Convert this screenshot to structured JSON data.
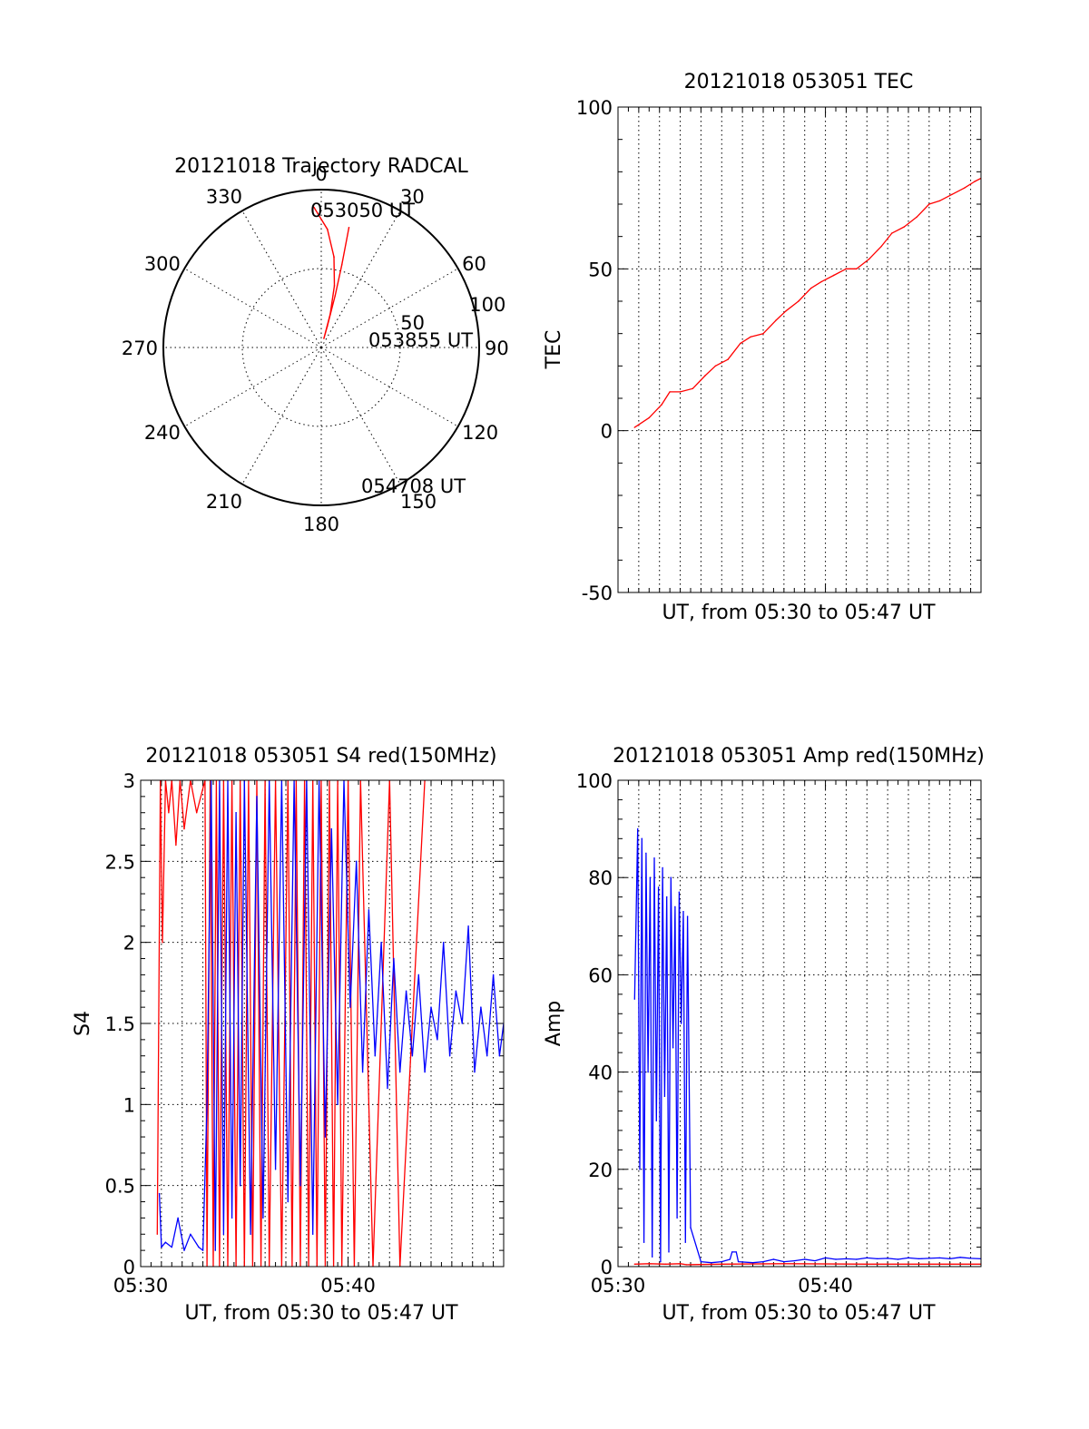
{
  "colors": {
    "red": "#ff0000",
    "blue": "#0000ff",
    "axis": "#000000"
  },
  "chart_data": [
    {
      "type": "polar",
      "title": "20121018 Trajectory RADCAL",
      "angle_labels": [
        "0",
        "30",
        "60",
        "90",
        "120",
        "150",
        "180",
        "210",
        "240",
        "270",
        "300",
        "330"
      ],
      "radius_labels": [
        "50",
        "100"
      ],
      "rlim": [
        0,
        100
      ],
      "grid": true,
      "series": [
        {
          "color": "red",
          "azimuth": [
            -3,
            3,
            8,
            12,
            15,
            16,
            16,
            15,
            14,
            13
          ],
          "radius": [
            89,
            75,
            58,
            40,
            22,
            6,
            14,
            34,
            54,
            78
          ]
        }
      ],
      "annotations": [
        "053050 UT",
        "053855 UT",
        "054708 UT"
      ]
    },
    {
      "type": "line",
      "title": "20121018 053051 TEC",
      "xlabel": "UT, from 05:30 to 05:47 UT",
      "ylabel": "TEC",
      "xlim": [
        0,
        17.5
      ],
      "ylim": [
        -50,
        100
      ],
      "yticks": [
        "-50",
        "0",
        "50",
        "100"
      ],
      "grid": true,
      "series": [
        {
          "color": "red",
          "x": [
            0.8,
            1.5,
            2.1,
            2.5,
            3.0,
            3.6,
            4.2,
            4.7,
            5.3,
            5.9,
            6.4,
            7.0,
            7.6,
            8.1,
            8.7,
            9.3,
            9.8,
            10.4,
            11.0,
            11.5,
            12.1,
            12.7,
            13.2,
            13.8,
            14.4,
            15.0,
            15.5,
            16.1,
            16.7,
            17.2,
            17.5
          ],
          "values": [
            1,
            4,
            8,
            12,
            12,
            13,
            17,
            20,
            22,
            27,
            29,
            30,
            34,
            37,
            40,
            44,
            46,
            48,
            50,
            50,
            53,
            57,
            61,
            63,
            66,
            70,
            71,
            73,
            75,
            77,
            78
          ]
        }
      ]
    },
    {
      "type": "line",
      "title": "20121018 053051 S4 red(150MHz)",
      "xlabel": "UT, from 05:30 to 05:47 UT",
      "ylabel": "S4",
      "xlim": [
        0,
        17.5
      ],
      "ylim": [
        0,
        3
      ],
      "xticks": [
        "05:30",
        "05:40"
      ],
      "yticks": [
        "0",
        "0.5",
        "1",
        "1.5",
        "2",
        "2.5",
        "3"
      ],
      "grid": true,
      "series": [
        {
          "color": "red",
          "x": [
            0.8,
            0.95,
            1.05,
            1.2,
            1.35,
            1.5,
            1.7,
            1.9,
            2.1,
            2.4,
            2.7,
            3.1,
            3.2,
            3.35,
            3.5,
            3.65,
            3.8,
            4.0,
            4.2,
            4.4,
            4.6,
            4.8,
            5.0,
            5.2,
            5.4,
            5.6,
            5.8,
            6.0,
            6.2,
            6.5,
            6.8,
            7.1,
            7.3,
            7.5,
            7.7,
            7.9,
            8.1,
            8.3,
            8.5,
            8.7,
            8.9,
            9.1,
            9.3,
            9.5,
            9.7,
            10.0,
            10.3,
            10.6,
            11.2,
            12.0,
            12.5,
            13.7
          ],
          "values": [
            0.2,
            3,
            2.0,
            3,
            2.8,
            3,
            2.6,
            3,
            2.7,
            3,
            2.8,
            3,
            0,
            3,
            0,
            3,
            0,
            3,
            0,
            3,
            0,
            3,
            0,
            3,
            0,
            3,
            0,
            3,
            0,
            3,
            0,
            3,
            0,
            3,
            0,
            3,
            0,
            3,
            0,
            3,
            0,
            3,
            0,
            3,
            0,
            3,
            0,
            3,
            0,
            3,
            0,
            3
          ]
        },
        {
          "color": "blue",
          "x": [
            0.9,
            1.0,
            1.2,
            1.5,
            1.8,
            2.1,
            2.4,
            2.8,
            3.0,
            3.2,
            3.4,
            3.6,
            3.8,
            4.0,
            4.2,
            4.4,
            4.6,
            4.8,
            5.0,
            5.3,
            5.6,
            5.9,
            6.2,
            6.5,
            6.8,
            7.1,
            7.4,
            7.7,
            8.0,
            8.3,
            8.6,
            8.9,
            9.2,
            9.5,
            9.8,
            10.1,
            10.4,
            10.7,
            11.0,
            11.3,
            11.6,
            11.9,
            12.2,
            12.5,
            12.8,
            13.1,
            13.4,
            13.7,
            14.0,
            14.3,
            14.6,
            14.9,
            15.2,
            15.5,
            15.8,
            16.1,
            16.4,
            16.7,
            17.0,
            17.3,
            17.5
          ],
          "values": [
            0.45,
            0.12,
            0.15,
            0.12,
            0.3,
            0.1,
            0.2,
            0.12,
            0.1,
            1.0,
            3,
            0.1,
            3,
            0.2,
            3,
            0.3,
            2.8,
            0.5,
            3,
            0.2,
            2.9,
            0.3,
            3,
            0.6,
            3,
            0.4,
            3,
            0.5,
            3,
            0.2,
            3,
            0.8,
            2.7,
            1.0,
            3,
            1.6,
            2.5,
            1.2,
            2.2,
            1.3,
            2.0,
            1.1,
            1.9,
            1.2,
            1.7,
            1.3,
            1.8,
            1.2,
            1.6,
            1.4,
            2.0,
            1.3,
            1.7,
            1.5,
            2.1,
            1.2,
            1.6,
            1.3,
            1.8,
            1.3,
            1.5
          ]
        }
      ]
    },
    {
      "type": "line",
      "title": "20121018 053051 Amp red(150MHz)",
      "xlabel": "UT, from 05:30 to 05:47 UT",
      "ylabel": "Amp",
      "xlim": [
        0,
        17.5
      ],
      "ylim": [
        0,
        100
      ],
      "xticks": [
        "05:30",
        "05:40"
      ],
      "yticks": [
        "0",
        "20",
        "40",
        "60",
        "80",
        "100"
      ],
      "grid": true,
      "series": [
        {
          "color": "red",
          "x": [
            0.8,
            1.5,
            2.3,
            3.0,
            3.3,
            5.0,
            8.0,
            12.0,
            17.5
          ],
          "values": [
            0.5,
            0.6,
            0.5,
            0.6,
            0.4,
            0.5,
            0.6,
            0.5,
            0.5
          ]
        },
        {
          "color": "blue",
          "x": [
            0.8,
            0.95,
            1.05,
            1.15,
            1.25,
            1.35,
            1.45,
            1.55,
            1.65,
            1.75,
            1.85,
            1.95,
            2.05,
            2.15,
            2.25,
            2.35,
            2.45,
            2.55,
            2.65,
            2.75,
            2.85,
            2.95,
            3.05,
            3.15,
            3.25,
            3.35,
            3.5,
            4.0,
            4.5,
            5.0,
            5.4,
            5.5,
            5.7,
            5.8,
            6.5,
            7.0,
            7.5,
            8.0,
            8.5,
            9.0,
            9.5,
            10.0,
            10.5,
            11.0,
            11.5,
            12.0,
            12.5,
            13.0,
            13.5,
            14.0,
            14.5,
            15.0,
            15.5,
            16.0,
            16.5,
            17.0,
            17.5
          ],
          "values": [
            55,
            90,
            20,
            88,
            5,
            85,
            40,
            80,
            2,
            84,
            30,
            78,
            1,
            82,
            35,
            76,
            3,
            80,
            45,
            74,
            10,
            77,
            50,
            73,
            5,
            72,
            8,
            1,
            0.8,
            1,
            1.5,
            3,
            3,
            1,
            0.8,
            1,
            1.5,
            1,
            1.2,
            1.5,
            1.2,
            1.8,
            1.5,
            1.6,
            1.5,
            1.8,
            1.6,
            1.7,
            1.5,
            1.8,
            1.6,
            1.7,
            1.8,
            1.6,
            1.9,
            1.7,
            1.6
          ]
        }
      ]
    }
  ]
}
